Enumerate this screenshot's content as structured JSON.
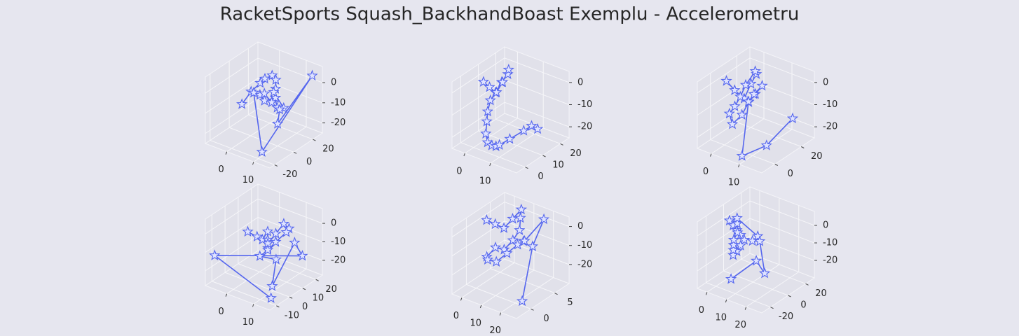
{
  "title": "RacketSports Squash_BackhandBoast Exemplu - Accelerometru",
  "chart_data": [
    {
      "type": "line3d",
      "marker": "star",
      "color": "#5566ee",
      "xlim": [
        -8,
        16
      ],
      "ylim": [
        -25,
        30
      ],
      "zlim": [
        -25,
        8
      ],
      "xticks": [
        0,
        10
      ],
      "yticks": [
        -20,
        0,
        20
      ],
      "zticks": [
        -20,
        -10,
        0
      ],
      "x": [
        -4,
        -2,
        0,
        1,
        3,
        4,
        5,
        6,
        3,
        2,
        4,
        6,
        7,
        5,
        8,
        9,
        10,
        14,
        12,
        -6
      ],
      "y": [
        2,
        6,
        10,
        12,
        14,
        15,
        12,
        9,
        6,
        4,
        3,
        5,
        8,
        10,
        12,
        5,
        0,
        25,
        -22,
        20
      ],
      "z": [
        -12,
        -6,
        -2,
        0,
        2,
        0,
        -3,
        -6,
        -8,
        -5,
        -3,
        -7,
        -10,
        -4,
        -11,
        -9,
        -14,
        4,
        -20,
        -13
      ]
    },
    {
      "type": "line3d",
      "marker": "star",
      "color": "#5566ee",
      "xlim": [
        -5,
        20
      ],
      "ylim": [
        -5,
        25
      ],
      "zlim": [
        -25,
        5
      ],
      "xticks": [
        0,
        10
      ],
      "yticks": [
        0,
        10,
        20
      ],
      "zticks": [
        -20,
        -10,
        0
      ],
      "x": [
        -3,
        -2,
        -1,
        0,
        1,
        2,
        1,
        0,
        -1,
        0,
        1,
        2,
        4,
        7,
        10,
        12,
        14,
        16,
        17,
        18
      ],
      "y": [
        10,
        12,
        14,
        16,
        18,
        17,
        15,
        13,
        11,
        8,
        6,
        4,
        2,
        0,
        -2,
        -3,
        0,
        5,
        8,
        10
      ],
      "z": [
        -2,
        -5,
        -8,
        -4,
        -1,
        2,
        -3,
        -7,
        -10,
        -13,
        -16,
        -20,
        -22,
        -21,
        -19,
        -17,
        -15,
        -13,
        -12,
        -14
      ]
    },
    {
      "type": "line3d",
      "marker": "star",
      "color": "#5566ee",
      "xlim": [
        -5,
        18
      ],
      "ylim": [
        -10,
        30
      ],
      "zlim": [
        -25,
        5
      ],
      "xticks": [
        0,
        10
      ],
      "yticks": [
        0,
        20
      ],
      "zticks": [
        -20,
        -10,
        0
      ],
      "x": [
        -4,
        -2,
        0,
        1,
        2,
        3,
        1,
        0,
        -1,
        -2,
        0,
        2,
        3,
        4,
        5,
        3,
        2,
        10,
        15,
        14
      ],
      "y": [
        10,
        12,
        15,
        18,
        20,
        17,
        14,
        12,
        10,
        8,
        6,
        9,
        12,
        15,
        18,
        16,
        14,
        -8,
        0,
        22
      ],
      "z": [
        -2,
        -6,
        -10,
        -4,
        0,
        3,
        -3,
        -8,
        -12,
        -15,
        -18,
        -14,
        -9,
        -6,
        -3,
        -7,
        -10,
        -22,
        -18,
        -15
      ]
    },
    {
      "type": "line3d",
      "marker": "star",
      "color": "#5566ee",
      "xlim": [
        -8,
        16
      ],
      "ylim": [
        -15,
        25
      ],
      "zlim": [
        -28,
        8
      ],
      "xticks": [
        0,
        10
      ],
      "yticks": [
        -10,
        0,
        10,
        20
      ],
      "zticks": [
        -20,
        -10,
        0
      ],
      "x": [
        -2,
        0,
        1,
        2,
        3,
        4,
        5,
        6,
        7,
        8,
        6,
        5,
        4,
        3,
        10,
        12,
        13,
        11,
        -6,
        14
      ],
      "y": [
        5,
        8,
        10,
        12,
        10,
        8,
        6,
        10,
        14,
        16,
        18,
        12,
        8,
        4,
        2,
        -5,
        10,
        20,
        -12,
        -10
      ],
      "z": [
        -5,
        -8,
        -10,
        -6,
        -9,
        -12,
        -8,
        -4,
        0,
        -3,
        -7,
        -10,
        -13,
        -15,
        -12,
        -22,
        -5,
        -18,
        -12,
        -25
      ]
    },
    {
      "type": "line3d",
      "marker": "star",
      "color": "#5566ee",
      "xlim": [
        -5,
        28
      ],
      "ylim": [
        -3,
        8
      ],
      "zlim": [
        -30,
        5
      ],
      "xticks": [
        0,
        10,
        20
      ],
      "yticks": [
        0,
        5
      ],
      "zticks": [
        -20,
        -10,
        0
      ],
      "x": [
        -2,
        0,
        2,
        4,
        6,
        8,
        10,
        9,
        7,
        5,
        3,
        1,
        3,
        6,
        9,
        12,
        15,
        20,
        24,
        26
      ],
      "y": [
        3,
        4,
        5,
        6,
        7,
        6,
        5,
        4,
        3,
        2,
        1,
        2,
        3,
        4,
        5,
        5,
        4,
        6,
        2,
        -1
      ],
      "z": [
        0,
        -3,
        -6,
        -2,
        2,
        0,
        -4,
        -8,
        -12,
        -10,
        -14,
        -18,
        -20,
        -16,
        -12,
        -9,
        -6,
        4,
        -2,
        -25
      ]
    },
    {
      "type": "line3d",
      "marker": "star",
      "color": "#5566ee",
      "xlim": [
        -5,
        28
      ],
      "ylim": [
        -30,
        30
      ],
      "zlim": [
        -30,
        8
      ],
      "xticks": [
        0,
        10,
        20
      ],
      "yticks": [
        -20,
        0,
        20
      ],
      "zticks": [
        -20,
        -10,
        0
      ],
      "x": [
        -2,
        -1,
        0,
        1,
        2,
        1,
        0,
        -1,
        0,
        1,
        2,
        3,
        2,
        1,
        8,
        12,
        18,
        25,
        5,
        10
      ],
      "y": [
        0,
        2,
        4,
        6,
        8,
        6,
        4,
        2,
        0,
        -2,
        -4,
        -2,
        0,
        2,
        10,
        -5,
        -10,
        -20,
        15,
        -25
      ],
      "z": [
        0,
        -3,
        -6,
        -9,
        -12,
        -15,
        -18,
        -20,
        -16,
        -12,
        -8,
        -4,
        0,
        2,
        -8,
        -4,
        0,
        -12,
        -25,
        -20
      ]
    }
  ]
}
